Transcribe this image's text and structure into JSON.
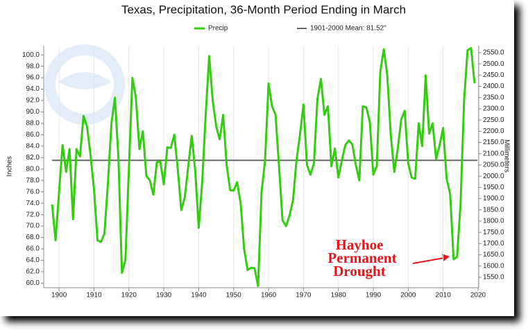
{
  "chart_data": {
    "type": "line",
    "title": "Texas, Precipitation, 36-Month Period Ending in March",
    "y_label": "Inches",
    "y2_label": "Millimeters",
    "x": [
      1898,
      1899,
      1900,
      1901,
      1902,
      1903,
      1904,
      1905,
      1906,
      1907,
      1908,
      1909,
      1910,
      1911,
      1912,
      1913,
      1914,
      1915,
      1916,
      1917,
      1918,
      1919,
      1920,
      1921,
      1922,
      1923,
      1924,
      1925,
      1926,
      1927,
      1928,
      1929,
      1930,
      1931,
      1932,
      1933,
      1934,
      1935,
      1936,
      1937,
      1938,
      1939,
      1940,
      1941,
      1942,
      1943,
      1944,
      1945,
      1946,
      1947,
      1948,
      1949,
      1950,
      1951,
      1952,
      1953,
      1954,
      1955,
      1956,
      1957,
      1958,
      1959,
      1960,
      1961,
      1962,
      1963,
      1964,
      1965,
      1966,
      1967,
      1968,
      1969,
      1970,
      1971,
      1972,
      1973,
      1974,
      1975,
      1976,
      1977,
      1978,
      1979,
      1980,
      1981,
      1982,
      1983,
      1984,
      1985,
      1986,
      1987,
      1988,
      1989,
      1990,
      1991,
      1992,
      1993,
      1994,
      1995,
      1996,
      1997,
      1998,
      1999,
      2000,
      2001,
      2002,
      2003,
      2004,
      2005,
      2006,
      2007,
      2008,
      2009,
      2010,
      2011,
      2012,
      2013,
      2014,
      2015,
      2016,
      2017,
      2018,
      2019
    ],
    "series": [
      {
        "name": "Precip",
        "color": "#33cc11",
        "values": [
          73.8,
          67.5,
          76,
          84.2,
          79.5,
          83.5,
          71.2,
          83.5,
          82.2,
          89.3,
          87.5,
          82.5,
          76.5,
          67.5,
          67.2,
          68.7,
          77.6,
          88,
          92.5,
          82,
          61.8,
          64,
          80,
          96,
          92.5,
          83.5,
          86.6,
          78.8,
          78,
          75.5,
          81.2,
          81.3,
          77.3,
          83.8,
          83.7,
          86,
          80,
          72.8,
          75,
          80.5,
          85.8,
          79.7,
          69.7,
          77.8,
          89.5,
          99.8,
          92,
          87.5,
          85.2,
          89.5,
          80.7,
          76.3,
          76.2,
          77.7,
          74,
          66,
          62.3,
          62.7,
          62.6,
          59.5,
          76,
          81.5,
          95,
          91,
          89.5,
          80.5,
          71,
          70,
          71.8,
          74.5,
          81.5,
          86,
          91.3,
          80.7,
          79,
          81,
          92.3,
          95.8,
          89.5,
          91,
          80.5,
          83.6,
          78.5,
          81.5,
          84.2,
          85,
          84.3,
          80.7,
          78,
          91,
          90.8,
          88.3,
          79,
          80.5,
          97,
          101,
          96.5,
          86,
          79.5,
          83.5,
          88.7,
          90.2,
          81,
          78.5,
          78.3,
          88,
          84,
          96.4,
          86.2,
          88,
          81.7,
          84.2,
          87.2,
          78.3,
          75.7,
          64.2,
          64.6,
          74,
          92,
          100.8,
          101.2,
          95
        ]
      }
    ],
    "mean": {
      "name": "1901-2000 Mean: 81.52\"",
      "value": 81.52,
      "color": "#666666"
    },
    "annotation": [
      "Hayhoe",
      "Permanent",
      "Drought"
    ],
    "xlim": [
      1895.6,
      2020.2
    ],
    "xticks": [
      1900,
      1910,
      1920,
      1930,
      1940,
      1950,
      1960,
      1970,
      1980,
      1990,
      2000,
      2010,
      2020
    ],
    "ylim": [
      59.2,
      101.6
    ],
    "yticks": [
      {
        "value": 60,
        "label": "60.0"
      },
      {
        "value": 62,
        "label": "62.0"
      },
      {
        "value": 64,
        "label": "64.0"
      },
      {
        "value": 66,
        "label": "66.0"
      },
      {
        "value": 68,
        "label": "68.0"
      },
      {
        "value": 70,
        "label": "70.0"
      },
      {
        "value": 72,
        "label": "72.0"
      },
      {
        "value": 74,
        "label": "74.0"
      },
      {
        "value": 76,
        "label": "76.0"
      },
      {
        "value": 78,
        "label": "78.0"
      },
      {
        "value": 80,
        "label": "80.0"
      },
      {
        "value": 82,
        "label": "82.0"
      },
      {
        "value": 84,
        "label": "84.0"
      },
      {
        "value": 86,
        "label": "86.0"
      },
      {
        "value": 88,
        "label": "88.0"
      },
      {
        "value": 90,
        "label": "90.0"
      },
      {
        "value": 92,
        "label": "92.0"
      },
      {
        "value": 94,
        "label": "94.0"
      },
      {
        "value": 96,
        "label": "96.0"
      },
      {
        "value": 98,
        "label": "98.0"
      },
      {
        "value": 100,
        "label": "100.0"
      }
    ],
    "y2lim": [
      1503.7,
      2580.6
    ],
    "y2ticks": [
      {
        "value": 1550,
        "label": "1550.0"
      },
      {
        "value": 1600,
        "label": "1600.0"
      },
      {
        "value": 1650,
        "label": "1650.0"
      },
      {
        "value": 1700,
        "label": "1700.0"
      },
      {
        "value": 1750,
        "label": "1750.0"
      },
      {
        "value": 1800,
        "label": "1800.0"
      },
      {
        "value": 1850,
        "label": "1850.0"
      },
      {
        "value": 1900,
        "label": "1900.0"
      },
      {
        "value": 1950,
        "label": "1950.0"
      },
      {
        "value": 2000,
        "label": "2000.0"
      },
      {
        "value": 2050,
        "label": "2050.0"
      },
      {
        "value": 2100,
        "label": "2100.0"
      },
      {
        "value": 2150,
        "label": "2150.0"
      },
      {
        "value": 2200,
        "label": "2200.0"
      },
      {
        "value": 2250,
        "label": "2250.0"
      },
      {
        "value": 2300,
        "label": "2300.0"
      },
      {
        "value": 2350,
        "label": "2350.0"
      },
      {
        "value": 2400,
        "label": "2400.0"
      },
      {
        "value": 2450,
        "label": "2450.0"
      },
      {
        "value": 2500,
        "label": "2500.0"
      },
      {
        "value": 2550,
        "label": "2550.0"
      }
    ],
    "grid": "x"
  }
}
